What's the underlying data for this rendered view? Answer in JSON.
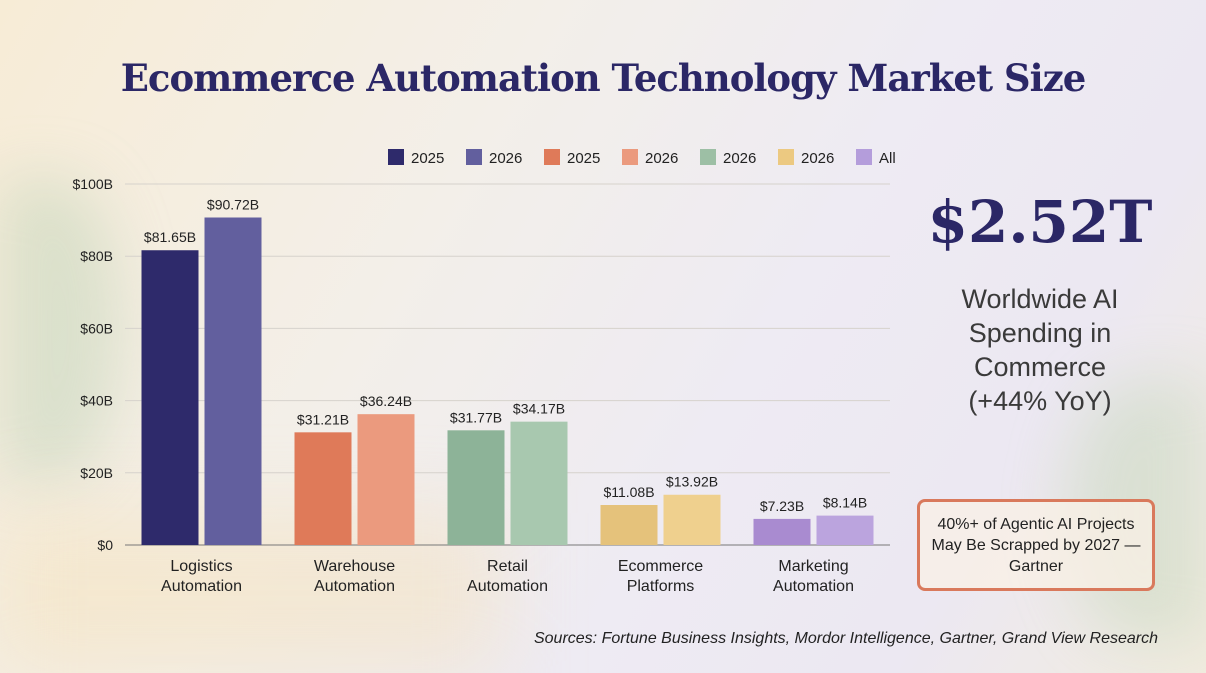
{
  "title": "Ecommerce Automation Technology Market Size",
  "chart_data": {
    "type": "bar",
    "categories": [
      "Logistics Automation",
      "Warehouse Automation",
      "Retail Automation",
      "Ecommerce Platforms",
      "Marketing Automation"
    ],
    "category_lines": [
      [
        "Logistics",
        "Automation"
      ],
      [
        "Warehouse",
        "Automation"
      ],
      [
        "Retail",
        "Automation"
      ],
      [
        "Ecommerce",
        "Platforms"
      ],
      [
        "Marketing",
        "Automation"
      ]
    ],
    "series": [
      {
        "name": "2025",
        "values": [
          81.65,
          31.21,
          31.77,
          11.08,
          7.23
        ],
        "colors": [
          "#2e2a6b",
          "#df7a59",
          "#8db398",
          "#e5c27b",
          "#a98bd0"
        ]
      },
      {
        "name": "2026",
        "values": [
          90.72,
          36.24,
          34.17,
          13.92,
          8.14
        ],
        "colors": [
          "#625f9e",
          "#eb9a7e",
          "#a8c8af",
          "#efd08e",
          "#bba4de"
        ]
      }
    ],
    "data_labels": [
      [
        "$81.65B",
        "$31.21B",
        "$31.77B",
        "$11.08B",
        "$7.23B"
      ],
      [
        "$90.72B",
        "$36.24B",
        "$34.17B",
        "$13.92B",
        "$8.14B"
      ]
    ],
    "legend": [
      {
        "label": "2025",
        "color": "#2e2a6b"
      },
      {
        "label": "2026",
        "color": "#625f9e"
      },
      {
        "label": "2025",
        "color": "#df7a59"
      },
      {
        "label": "2026",
        "color": "#eb9a7e"
      },
      {
        "label": "2026",
        "color": "#9dbfa5"
      },
      {
        "label": "2026",
        "color": "#ecc981"
      },
      {
        "label": "All",
        "color": "#b49ddb"
      }
    ],
    "legend_position": "top",
    "ylim": [
      0,
      100
    ],
    "yticks": [
      0,
      20,
      40,
      60,
      80,
      100
    ],
    "ytick_labels": [
      "$0",
      "$20B",
      "$40B",
      "$60B",
      "$80B",
      "$100B"
    ],
    "grid": true,
    "xlabel": "",
    "ylabel": ""
  },
  "callout": {
    "value": "$2.52T",
    "lines": [
      "Worldwide AI",
      "Spending in",
      "Commerce",
      "(+44% YoY)"
    ]
  },
  "note": "40%+ of Agentic AI Projects May Be Scrapped by 2027 — Gartner",
  "sources": "Sources: Fortune Business Insights, Mordor Intelligence, Gartner, Grand View Research"
}
